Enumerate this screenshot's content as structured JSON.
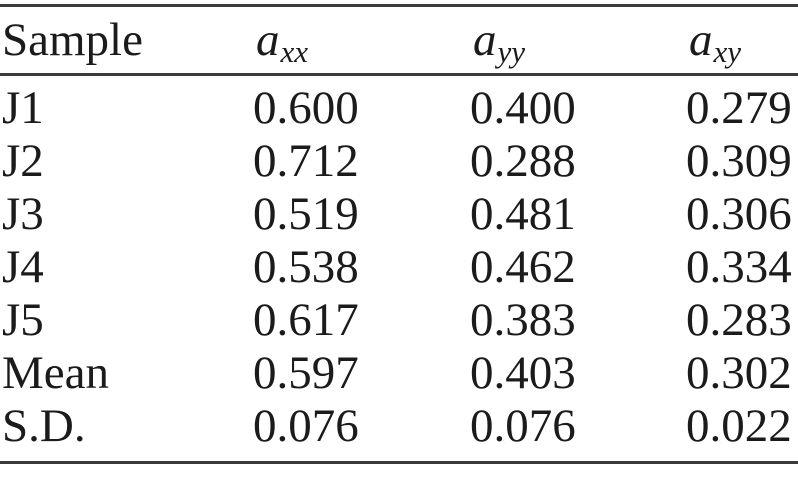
{
  "page": {
    "background": "#ffffff",
    "text_color": "#1b1b1b",
    "rule_color": "#3a3a3a"
  },
  "table": {
    "header": {
      "sample_label": "Sample",
      "col_axx_base": "a",
      "col_axx_sub": "xx",
      "col_ayy_base": "a",
      "col_ayy_sub": "yy",
      "col_axy_base": "a",
      "col_axy_sub": "xy"
    },
    "rows": [
      {
        "sample": "J1",
        "axx": "0.600",
        "ayy": "0.400",
        "axy": "0.279"
      },
      {
        "sample": "J2",
        "axx": "0.712",
        "ayy": "0.288",
        "axy": "0.309"
      },
      {
        "sample": "J3",
        "axx": "0.519",
        "ayy": "0.481",
        "axy": "0.306"
      },
      {
        "sample": "J4",
        "axx": "0.538",
        "ayy": "0.462",
        "axy": "0.334"
      },
      {
        "sample": "J5",
        "axx": "0.617",
        "ayy": "0.383",
        "axy": "0.283"
      },
      {
        "sample": "Mean",
        "axx": "0.597",
        "ayy": "0.403",
        "axy": "0.302"
      },
      {
        "sample": "S.D.",
        "axx": "0.076",
        "ayy": "0.076",
        "axy": "0.022"
      }
    ]
  },
  "chart_data": {
    "type": "table",
    "columns": [
      "Sample",
      "a_xx",
      "a_yy",
      "a_xy"
    ],
    "rows": [
      [
        "J1",
        0.6,
        0.4,
        0.279
      ],
      [
        "J2",
        0.712,
        0.288,
        0.309
      ],
      [
        "J3",
        0.519,
        0.481,
        0.306
      ],
      [
        "J4",
        0.538,
        0.462,
        0.334
      ],
      [
        "J5",
        0.617,
        0.383,
        0.283
      ],
      [
        "Mean",
        0.597,
        0.403,
        0.302
      ],
      [
        "S.D.",
        0.076,
        0.076,
        0.022
      ]
    ]
  }
}
